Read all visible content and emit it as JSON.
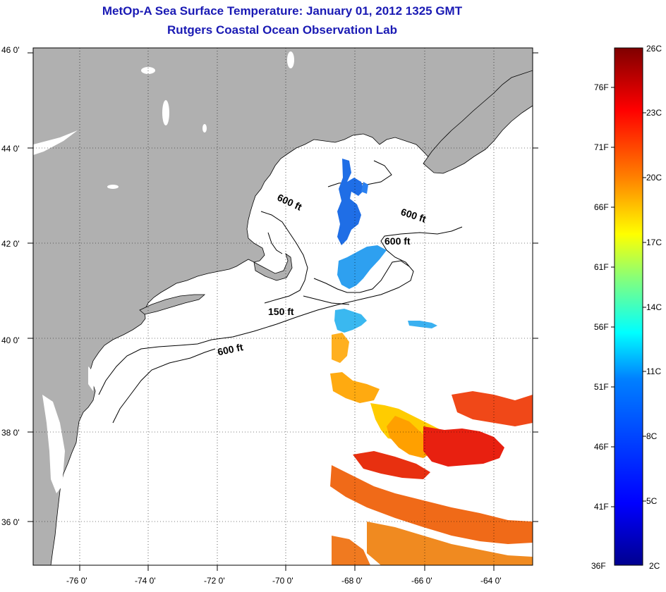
{
  "title": "MetOp-A Sea Surface Temperature:  January 01, 2012 1325 GMT",
  "subtitle": "Rutgers Coastal Ocean Observation Lab",
  "latitude_labels": [
    "46 0'",
    "44 0'",
    "42 0'",
    "40 0'",
    "38 0'",
    "36 0'"
  ],
  "longitude_labels": [
    "-76 0'",
    "-74 0'",
    "-72 0'",
    "-70 0'",
    "-68 0'",
    "-66 0'",
    "-64 0'"
  ],
  "contour_labels": [
    "600 ft",
    "600 ft",
    "600 ft",
    "150 ft",
    "600 ft"
  ],
  "colorbar": {
    "fahrenheit_labels": [
      "76F",
      "71F",
      "66F",
      "61F",
      "56F",
      "51F",
      "46F",
      "41F",
      "36F"
    ],
    "celsius_labels": [
      "26C",
      "23C",
      "20C",
      "17C",
      "14C",
      "11C",
      "8C",
      "5C",
      "2C"
    ],
    "colors": [
      "#7f0000",
      "#ff0000",
      "#ff8000",
      "#ffff00",
      "#80ff80",
      "#00ffff",
      "#0080ff",
      "#0000ff",
      "#00008f"
    ]
  },
  "colors": {
    "title": "#1a1ab4",
    "land": "#b0b0b0",
    "ocean": "#ffffff"
  }
}
